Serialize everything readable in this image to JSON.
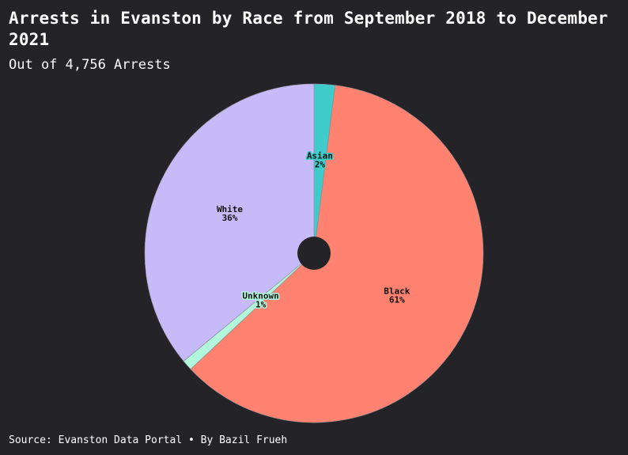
{
  "title": "Arrests in Evanston by Race from September 2018 to December 2021",
  "subtitle": "Out of 4,756 Arrests",
  "source": "Source: Evanston Data Portal • By Bazil Frueh",
  "chart_data": {
    "type": "pie",
    "title": "Arrests in Evanston by Race from September 2018 to December 2021",
    "subtitle": "Out of 4,756 Arrests",
    "total": 4756,
    "categories": [
      "Asian",
      "Black",
      "Unknown",
      "White"
    ],
    "values": [
      2,
      61,
      1,
      36
    ],
    "value_labels": [
      "2%",
      "61%",
      "1%",
      "36%"
    ],
    "colors": [
      "#3ecbc9",
      "#ff8170",
      "#b2f6db",
      "#c7baf8"
    ],
    "start": "12 o'clock",
    "direction": "clockwise",
    "donut_hole": true
  }
}
